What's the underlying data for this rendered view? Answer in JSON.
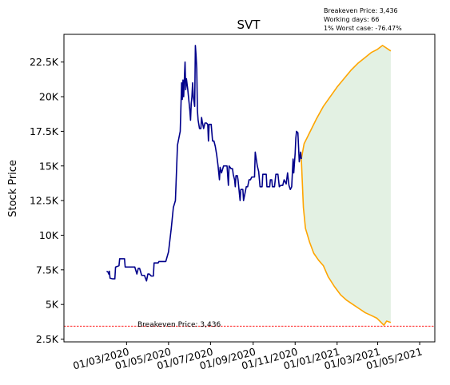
{
  "chart_data": {
    "type": "line",
    "title": "SVT",
    "xlabel": "",
    "ylabel": "Stock Price",
    "ylim": [
      2300,
      24500
    ],
    "xlim": [
      "2019-12-01",
      "2021-05-23"
    ],
    "grid": false,
    "x_ticks": [
      "2020-03-01",
      "2020-05-01",
      "2020-07-01",
      "2020-09-01",
      "2020-11-01",
      "2021-01-01",
      "2021-03-01",
      "2021-05-01"
    ],
    "x_tick_labels": [
      "01/03/2020",
      "01/05/2020",
      "01/07/2020",
      "01/09/2020",
      "01/11/2020",
      "01/01/2021",
      "01/03/2021",
      "01/05/2021"
    ],
    "y_ticks": [
      2500,
      5000,
      7500,
      10000,
      12500,
      15000,
      17500,
      20000,
      22500
    ],
    "y_tick_labels": [
      "2.5K",
      "5K",
      "7.5K",
      "10K",
      "12.5K",
      "15K",
      "17.5K",
      "20K",
      "22.5K"
    ],
    "info_lines": [
      "Breakeven Price: 3,436",
      "Working days: 66",
      "1% Worst case: -76.47%"
    ],
    "breakeven": {
      "value": 3436,
      "label": "Breakeven Price: 3,436",
      "color": "#ff0000"
    },
    "colors": {
      "history": "#00008b",
      "forecast": "#ffa500",
      "band_fill": "#e3f1e3"
    },
    "series": [
      {
        "name": "",
        "role": "history",
        "points": [
          [
            "2020-02-01",
            7400
          ],
          [
            "2020-02-03",
            7350
          ],
          [
            "2020-02-04",
            7200
          ],
          [
            "2020-02-05",
            7400
          ],
          [
            "2020-02-06",
            6900
          ],
          [
            "2020-02-10",
            6850
          ],
          [
            "2020-02-13",
            6850
          ],
          [
            "2020-02-14",
            7700
          ],
          [
            "2020-02-19",
            7800
          ],
          [
            "2020-02-20",
            8300
          ],
          [
            "2020-02-27",
            8300
          ],
          [
            "2020-02-28",
            7700
          ],
          [
            "2020-03-13",
            7700
          ],
          [
            "2020-03-16",
            7200
          ],
          [
            "2020-03-18",
            7600
          ],
          [
            "2020-03-20",
            7600
          ],
          [
            "2020-03-23",
            7100
          ],
          [
            "2020-03-27",
            7100
          ],
          [
            "2020-03-30",
            6700
          ],
          [
            "2020-04-01",
            7200
          ],
          [
            "2020-04-03",
            7200
          ],
          [
            "2020-04-06",
            7050
          ],
          [
            "2020-04-09",
            7050
          ],
          [
            "2020-04-10",
            8000
          ],
          [
            "2020-04-16",
            8000
          ],
          [
            "2020-04-17",
            8100
          ],
          [
            "2020-04-27",
            8100
          ],
          [
            "2020-05-01",
            8800
          ],
          [
            "2020-05-05",
            10500
          ],
          [
            "2020-05-08",
            12000
          ],
          [
            "2020-05-11",
            12500
          ],
          [
            "2020-05-14",
            16500
          ],
          [
            "2020-05-18",
            17500
          ],
          [
            "2020-05-20",
            21000
          ],
          [
            "2020-05-21",
            19800
          ],
          [
            "2020-05-22",
            21200
          ],
          [
            "2020-05-23",
            20000
          ],
          [
            "2020-05-25",
            22500
          ],
          [
            "2020-05-26",
            20500
          ],
          [
            "2020-05-27",
            21300
          ],
          [
            "2020-05-29",
            20500
          ],
          [
            "2020-06-01",
            19000
          ],
          [
            "2020-06-02",
            18300
          ],
          [
            "2020-06-03",
            19500
          ],
          [
            "2020-06-04",
            20000
          ],
          [
            "2020-06-05",
            21000
          ],
          [
            "2020-06-06",
            20000
          ],
          [
            "2020-06-08",
            19300
          ],
          [
            "2020-06-09",
            23700
          ],
          [
            "2020-06-10",
            23000
          ],
          [
            "2020-06-11",
            22000
          ],
          [
            "2020-06-12",
            19000
          ],
          [
            "2020-06-13",
            18300
          ],
          [
            "2020-06-15",
            17700
          ],
          [
            "2020-06-17",
            17700
          ],
          [
            "2020-06-18",
            18500
          ],
          [
            "2020-06-19",
            18200
          ],
          [
            "2020-06-21",
            17700
          ],
          [
            "2020-06-23",
            18100
          ],
          [
            "2020-06-25",
            18100
          ],
          [
            "2020-06-27",
            18000
          ],
          [
            "2020-06-28",
            16800
          ],
          [
            "2020-06-29",
            18000
          ],
          [
            "2020-07-02",
            18000
          ],
          [
            "2020-07-04",
            16800
          ],
          [
            "2020-07-06",
            16800
          ],
          [
            "2020-07-07",
            16600
          ],
          [
            "2020-07-08",
            16400
          ],
          [
            "2020-07-10",
            15800
          ],
          [
            "2020-07-12",
            15000
          ],
          [
            "2020-07-14",
            14000
          ],
          [
            "2020-07-15",
            14900
          ],
          [
            "2020-07-17",
            14500
          ],
          [
            "2020-07-20",
            15000
          ],
          [
            "2020-07-25",
            15000
          ],
          [
            "2020-07-27",
            13600
          ],
          [
            "2020-07-28",
            15000
          ],
          [
            "2020-07-31",
            14800
          ],
          [
            "2020-08-02",
            14800
          ],
          [
            "2020-08-03",
            14400
          ],
          [
            "2020-08-05",
            14000
          ],
          [
            "2020-08-06",
            13500
          ],
          [
            "2020-08-07",
            14300
          ],
          [
            "2020-08-09",
            14300
          ],
          [
            "2020-08-10",
            14000
          ],
          [
            "2020-08-12",
            13000
          ],
          [
            "2020-08-13",
            12500
          ],
          [
            "2020-08-14",
            13300
          ],
          [
            "2020-08-17",
            13300
          ],
          [
            "2020-08-18",
            12500
          ],
          [
            "2020-08-20",
            13000
          ],
          [
            "2020-08-22",
            13500
          ],
          [
            "2020-08-24",
            13500
          ],
          [
            "2020-08-26",
            14000
          ],
          [
            "2020-08-28",
            14000
          ],
          [
            "2020-08-30",
            14200
          ],
          [
            "2020-09-03",
            14200
          ],
          [
            "2020-09-04",
            16000
          ],
          [
            "2020-09-07",
            15000
          ],
          [
            "2020-09-09",
            14600
          ],
          [
            "2020-09-11",
            13500
          ],
          [
            "2020-09-14",
            13500
          ],
          [
            "2020-09-15",
            14400
          ],
          [
            "2020-09-20",
            14400
          ],
          [
            "2020-09-21",
            13500
          ],
          [
            "2020-09-25",
            13500
          ],
          [
            "2020-09-26",
            14000
          ],
          [
            "2020-09-28",
            14000
          ],
          [
            "2020-09-29",
            13500
          ],
          [
            "2020-10-02",
            13500
          ],
          [
            "2020-10-04",
            14400
          ],
          [
            "2020-10-07",
            14400
          ],
          [
            "2020-10-09",
            13500
          ],
          [
            "2020-10-11",
            13600
          ],
          [
            "2020-10-14",
            13600
          ],
          [
            "2020-10-16",
            14000
          ],
          [
            "2020-10-19",
            13700
          ],
          [
            "2020-10-21",
            14500
          ],
          [
            "2020-10-23",
            13600
          ],
          [
            "2020-10-25",
            13300
          ],
          [
            "2020-10-27",
            13500
          ],
          [
            "2020-10-29",
            15500
          ],
          [
            "2020-10-30",
            14500
          ],
          [
            "2020-11-01",
            15900
          ],
          [
            "2020-11-02",
            17000
          ],
          [
            "2020-11-03",
            17500
          ],
          [
            "2020-11-05",
            17400
          ],
          [
            "2020-11-07",
            15300
          ],
          [
            "2020-11-09",
            16000
          ],
          [
            "2020-11-10",
            15500
          ]
        ]
      },
      {
        "name": "",
        "role": "forecast-upper",
        "points": [
          [
            "2020-11-10",
            15500
          ],
          [
            "2020-11-14",
            16600
          ],
          [
            "2020-11-22",
            17400
          ],
          [
            "2020-12-02",
            18400
          ],
          [
            "2020-12-12",
            19300
          ],
          [
            "2020-12-22",
            20000
          ],
          [
            "2021-01-01",
            20700
          ],
          [
            "2021-01-11",
            21300
          ],
          [
            "2021-01-21",
            21900
          ],
          [
            "2021-01-31",
            22400
          ],
          [
            "2021-02-10",
            22800
          ],
          [
            "2021-02-20",
            23200
          ],
          [
            "2021-02-28",
            23400
          ],
          [
            "2021-03-08",
            23700
          ],
          [
            "2021-03-20",
            23300
          ]
        ]
      },
      {
        "name": "",
        "role": "forecast-lower",
        "points": [
          [
            "2020-11-10",
            15500
          ],
          [
            "2020-11-13",
            12000
          ],
          [
            "2020-11-16",
            10500
          ],
          [
            "2020-11-22",
            9500
          ],
          [
            "2020-11-28",
            8700
          ],
          [
            "2020-12-05",
            8200
          ],
          [
            "2020-12-12",
            7800
          ],
          [
            "2020-12-19",
            7000
          ],
          [
            "2020-12-28",
            6300
          ],
          [
            "2021-01-06",
            5700
          ],
          [
            "2021-01-15",
            5300
          ],
          [
            "2021-01-24",
            5000
          ],
          [
            "2021-02-02",
            4700
          ],
          [
            "2021-02-11",
            4400
          ],
          [
            "2021-02-20",
            4200
          ],
          [
            "2021-02-28",
            4000
          ],
          [
            "2021-03-06",
            3700
          ],
          [
            "2021-03-10",
            3500
          ],
          [
            "2021-03-14",
            3800
          ],
          [
            "2021-03-20",
            3700
          ]
        ]
      }
    ]
  }
}
